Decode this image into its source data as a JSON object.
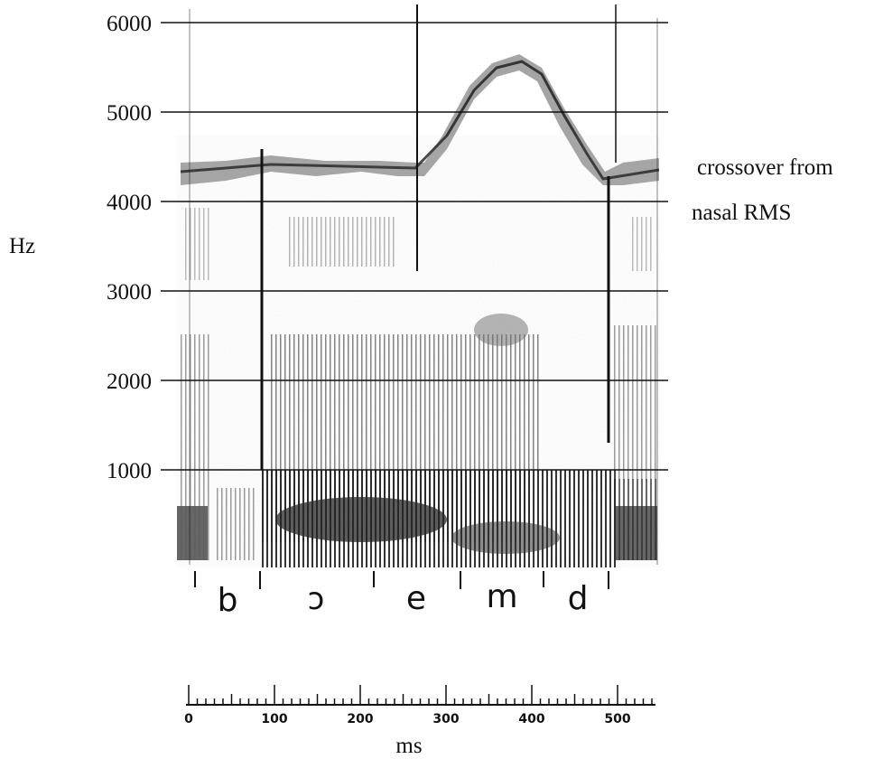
{
  "y_axis": {
    "unit": "Hz",
    "ticks": [
      "6000",
      "5000",
      "4000",
      "3000",
      "2000",
      "1000"
    ]
  },
  "annotation": {
    "line1": "crossover from",
    "line2": "nasal RMS"
  },
  "segments": [
    "b",
    "ɔ",
    "e",
    "m",
    "d"
  ],
  "x_axis": {
    "unit": "ms",
    "ticks": [
      "0",
      "100",
      "200",
      "300",
      "400",
      "500"
    ]
  },
  "colors": {
    "ink": "#111111",
    "spectrogram_dark": "#2a2a2a",
    "spectrogram_light": "#9a9a9a"
  }
}
